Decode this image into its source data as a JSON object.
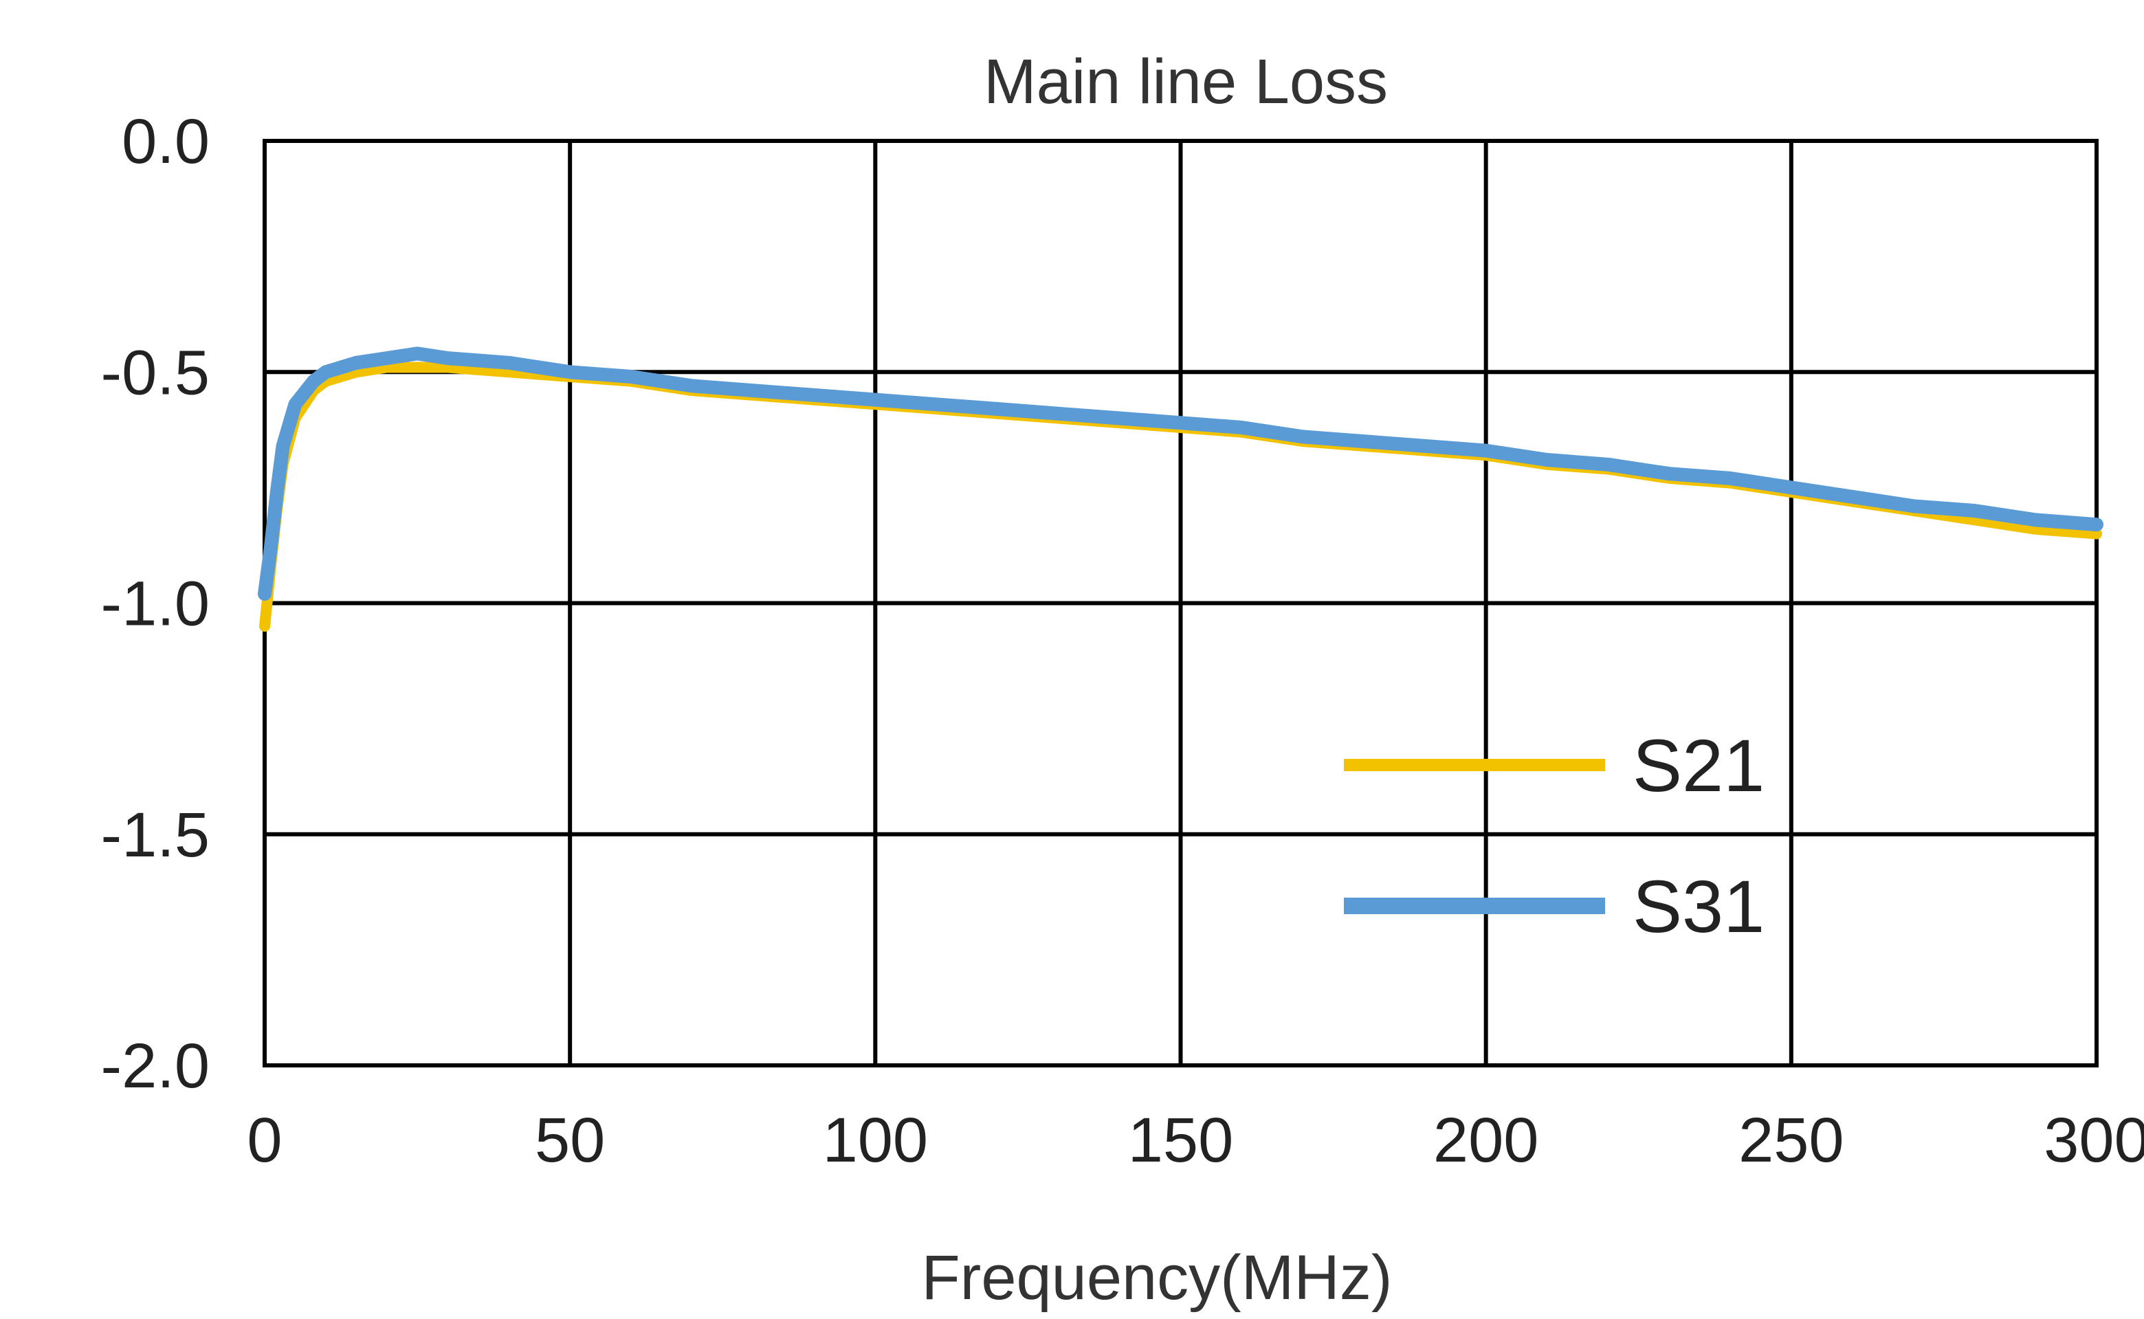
{
  "chart_data": {
    "type": "line",
    "title": "Main line Loss",
    "xlabel": "Frequency(MHz)",
    "ylabel": "",
    "xlim": [
      0,
      300
    ],
    "ylim": [
      -2.0,
      0.0
    ],
    "x_ticks": [
      "0",
      "50",
      "100",
      "150",
      "200",
      "250",
      "300"
    ],
    "y_ticks": [
      "0.0",
      "-0.5",
      "-1.0",
      "-1.5",
      "-2.0"
    ],
    "grid": true,
    "legend_position": "lower-right",
    "series": [
      {
        "name": "S21",
        "color": "#F2C200",
        "x": [
          0,
          1,
          2,
          3,
          5,
          8,
          10,
          15,
          20,
          25,
          30,
          40,
          50,
          60,
          70,
          80,
          90,
          100,
          110,
          120,
          130,
          140,
          150,
          160,
          170,
          180,
          190,
          200,
          210,
          220,
          230,
          240,
          250,
          260,
          270,
          280,
          290,
          300
        ],
        "values": [
          -1.05,
          -0.92,
          -0.8,
          -0.7,
          -0.6,
          -0.54,
          -0.52,
          -0.5,
          -0.49,
          -0.49,
          -0.49,
          -0.5,
          -0.51,
          -0.52,
          -0.54,
          -0.55,
          -0.56,
          -0.57,
          -0.58,
          -0.59,
          -0.6,
          -0.61,
          -0.62,
          -0.63,
          -0.65,
          -0.66,
          -0.67,
          -0.68,
          -0.7,
          -0.71,
          -0.73,
          -0.74,
          -0.76,
          -0.78,
          -0.8,
          -0.82,
          -0.84,
          -0.85
        ]
      },
      {
        "name": "S31",
        "color": "#5B9BD5",
        "x": [
          0,
          1,
          2,
          3,
          5,
          8,
          10,
          15,
          20,
          25,
          30,
          40,
          50,
          60,
          70,
          80,
          90,
          100,
          110,
          120,
          130,
          140,
          150,
          160,
          170,
          180,
          190,
          200,
          210,
          220,
          230,
          240,
          250,
          260,
          270,
          280,
          290,
          300
        ],
        "values": [
          -0.98,
          -0.88,
          -0.76,
          -0.66,
          -0.57,
          -0.52,
          -0.5,
          -0.48,
          -0.47,
          -0.46,
          -0.47,
          -0.48,
          -0.5,
          -0.51,
          -0.53,
          -0.54,
          -0.55,
          -0.56,
          -0.57,
          -0.58,
          -0.59,
          -0.6,
          -0.61,
          -0.62,
          -0.64,
          -0.65,
          -0.66,
          -0.67,
          -0.69,
          -0.7,
          -0.72,
          -0.73,
          -0.75,
          -0.77,
          -0.79,
          -0.8,
          -0.82,
          -0.83
        ]
      }
    ]
  }
}
